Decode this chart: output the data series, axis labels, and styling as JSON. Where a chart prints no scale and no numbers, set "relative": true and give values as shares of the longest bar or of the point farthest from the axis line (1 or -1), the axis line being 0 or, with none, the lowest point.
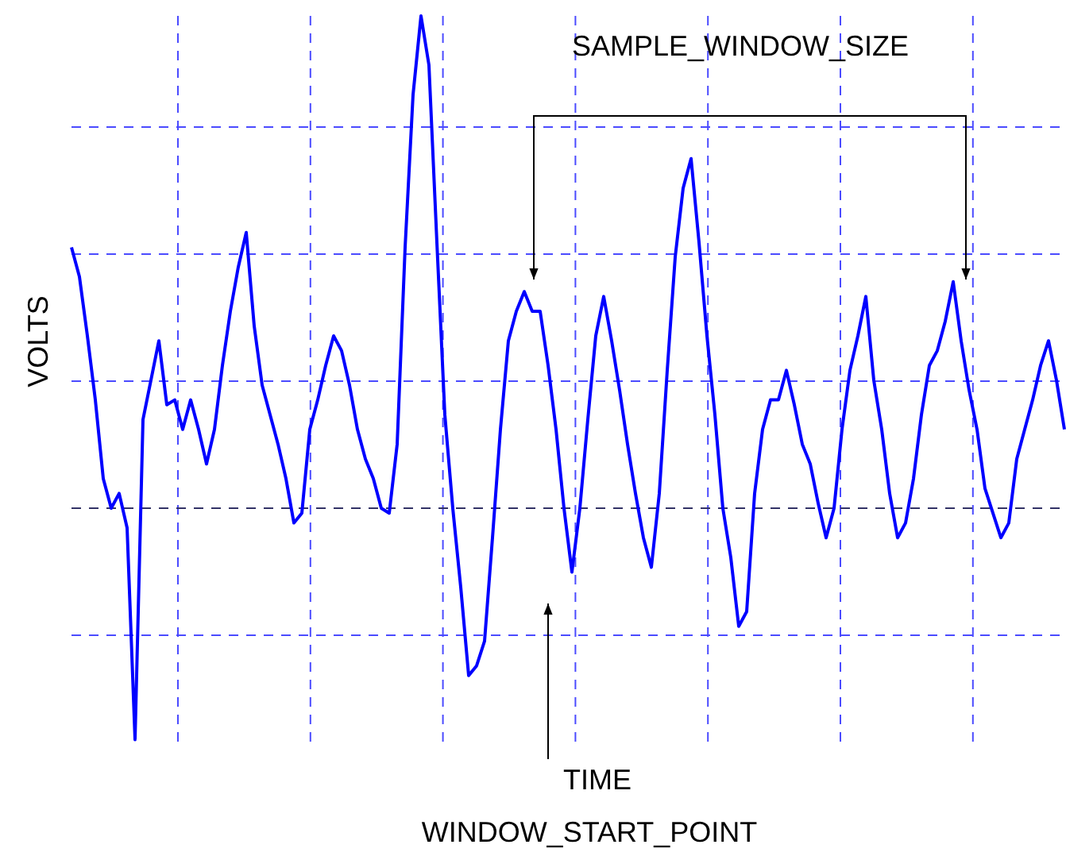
{
  "chart_data": {
    "type": "line",
    "relative": true,
    "xlabel": "TIME",
    "ylabel": "VOLTS",
    "grid": true,
    "line_style": "solid",
    "annotations": [
      "SAMPLE_WINDOW_SIZE",
      "WINDOW_START_POINT"
    ],
    "ref_lines": [
      {
        "axis": "y",
        "value": 0,
        "color": "#333366",
        "line_style": "dashed"
      }
    ],
    "categories": [
      null,
      null,
      null,
      null,
      null,
      null,
      null,
      null,
      null,
      null,
      null,
      null,
      null,
      null,
      null,
      null,
      null,
      null,
      null,
      null,
      null,
      null,
      null,
      null,
      null,
      null,
      null,
      null,
      null,
      null,
      null,
      null,
      null,
      null,
      null,
      null,
      null,
      null,
      null,
      null,
      null,
      null,
      null,
      null,
      null,
      null,
      null,
      null,
      null,
      null,
      null,
      null,
      null,
      null,
      null,
      null,
      null,
      null,
      null,
      null,
      null,
      null,
      null,
      null,
      null,
      null,
      null,
      null,
      null,
      null,
      null,
      null,
      null,
      null,
      null,
      null,
      null,
      null,
      null,
      null,
      null,
      null,
      null,
      null,
      null,
      null,
      null,
      null,
      null,
      null,
      null,
      null,
      null,
      null,
      null,
      null,
      null,
      null,
      null,
      null,
      null,
      null,
      null,
      null,
      null,
      null,
      null,
      null,
      null,
      null,
      null,
      null,
      null,
      null,
      null,
      null,
      null,
      null,
      null,
      null,
      null,
      null,
      null,
      null,
      null,
      null
    ],
    "series": [
      {
        "color": "#0000ff",
        "values": [
          0.53,
          0.47,
          0.35,
          0.22,
          0.06,
          0,
          0.03,
          -0.04,
          -0.47,
          0.18,
          0.26,
          0.34,
          0.21,
          0.22,
          0.16,
          0.22,
          0.16,
          0.09,
          0.16,
          0.29,
          0.4,
          0.49,
          0.56,
          0.37,
          0.25,
          0.19,
          0.13,
          0.06,
          -0.03,
          -0.01,
          0.16,
          0.22,
          0.29,
          0.35,
          0.32,
          0.25,
          0.16,
          0.1,
          0.06,
          0,
          -0.01,
          0.13,
          0.53,
          0.84,
          1,
          0.9,
          0.54,
          0.19,
          0,
          -0.16,
          -0.34,
          -0.32,
          -0.27,
          -0.06,
          0.16,
          0.34,
          0.4,
          0.44,
          0.4,
          0.4,
          0.29,
          0.16,
          0,
          -0.13,
          0,
          0.18,
          0.35,
          0.43,
          0.34,
          0.24,
          0.13,
          0.03,
          -0.06,
          -0.12,
          0.03,
          0.28,
          0.51,
          0.65,
          0.71,
          0.54,
          0.35,
          0.19,
          0,
          -0.1,
          -0.24,
          -0.21,
          0.03,
          0.16,
          0.22,
          0.22,
          0.28,
          0.21,
          0.13,
          0.09,
          0.01,
          -0.06,
          0,
          0.16,
          0.28,
          0.35,
          0.43,
          0.26,
          0.16,
          0.03,
          -0.06,
          -0.03,
          0.06,
          0.19,
          0.29,
          0.32,
          0.38,
          0.46,
          0.34,
          0.24,
          0.16,
          0.04,
          -0.01,
          -0.06,
          -0.03,
          0.1,
          0.16,
          0.22,
          0.29,
          0.34,
          0.26,
          0.16
        ]
      }
    ]
  }
}
